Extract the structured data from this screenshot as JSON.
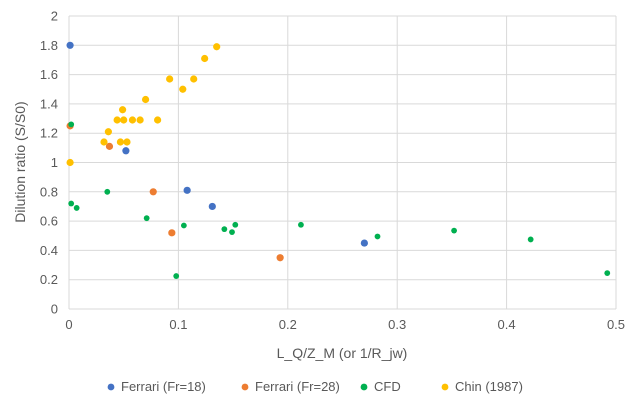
{
  "chart_data": {
    "type": "scatter",
    "title": "",
    "xlabel": "L_Q/Z_M (or 1/R_jw)",
    "ylabel": "Dilution ratio (S/S0)",
    "xlim": [
      0,
      0.5
    ],
    "ylim": [
      0,
      2
    ],
    "xticks": [
      0,
      0.1,
      0.2,
      0.3,
      0.4,
      0.5
    ],
    "xtick_labels": [
      "0",
      "0.1",
      "0.2",
      "0.3",
      "0.4",
      "0.5"
    ],
    "yticks": [
      0,
      0.2,
      0.4,
      0.6,
      0.8,
      1,
      1.2,
      1.4,
      1.6,
      1.8,
      2
    ],
    "ytick_labels": [
      "0",
      "0.2",
      "0.4",
      "0.6",
      "0.8",
      "1",
      "1.2",
      "1.4",
      "1.6",
      "1.8",
      "2"
    ],
    "grid": true,
    "legend_position": "bottom",
    "series": [
      {
        "name": "Ferrari (Fr=18)",
        "color": "#4472C4",
        "points": [
          [
            0.001,
            1.8
          ],
          [
            0.052,
            1.08
          ],
          [
            0.108,
            0.81
          ],
          [
            0.131,
            0.7
          ],
          [
            0.27,
            0.45
          ]
        ]
      },
      {
        "name": "Ferrari (Fr=28)",
        "color": "#ED7D31",
        "points": [
          [
            0.001,
            1.25
          ],
          [
            0.037,
            1.11
          ],
          [
            0.077,
            0.8
          ],
          [
            0.094,
            0.52
          ],
          [
            0.193,
            0.35
          ]
        ]
      },
      {
        "name": "CFD",
        "color": "#00B050",
        "points": [
          [
            0.002,
            1.26
          ],
          [
            0.002,
            0.72
          ],
          [
            0.007,
            0.69
          ],
          [
            0.035,
            0.8
          ],
          [
            0.071,
            0.62
          ],
          [
            0.098,
            0.225
          ],
          [
            0.105,
            0.57
          ],
          [
            0.142,
            0.545
          ],
          [
            0.149,
            0.525
          ],
          [
            0.152,
            0.575
          ],
          [
            0.212,
            0.575
          ],
          [
            0.282,
            0.495
          ],
          [
            0.352,
            0.535
          ],
          [
            0.422,
            0.475
          ],
          [
            0.492,
            0.245
          ]
        ]
      },
      {
        "name": "Chin (1987)",
        "color": "#FFC000",
        "points": [
          [
            0.001,
            1.0
          ],
          [
            0.032,
            1.14
          ],
          [
            0.036,
            1.21
          ],
          [
            0.044,
            1.29
          ],
          [
            0.047,
            1.14
          ],
          [
            0.049,
            1.36
          ],
          [
            0.05,
            1.29
          ],
          [
            0.053,
            1.14
          ],
          [
            0.058,
            1.29
          ],
          [
            0.065,
            1.29
          ],
          [
            0.07,
            1.43
          ],
          [
            0.081,
            1.29
          ],
          [
            0.092,
            1.57
          ],
          [
            0.104,
            1.5
          ],
          [
            0.114,
            1.57
          ],
          [
            0.124,
            1.71
          ],
          [
            0.135,
            1.79
          ]
        ]
      }
    ]
  }
}
